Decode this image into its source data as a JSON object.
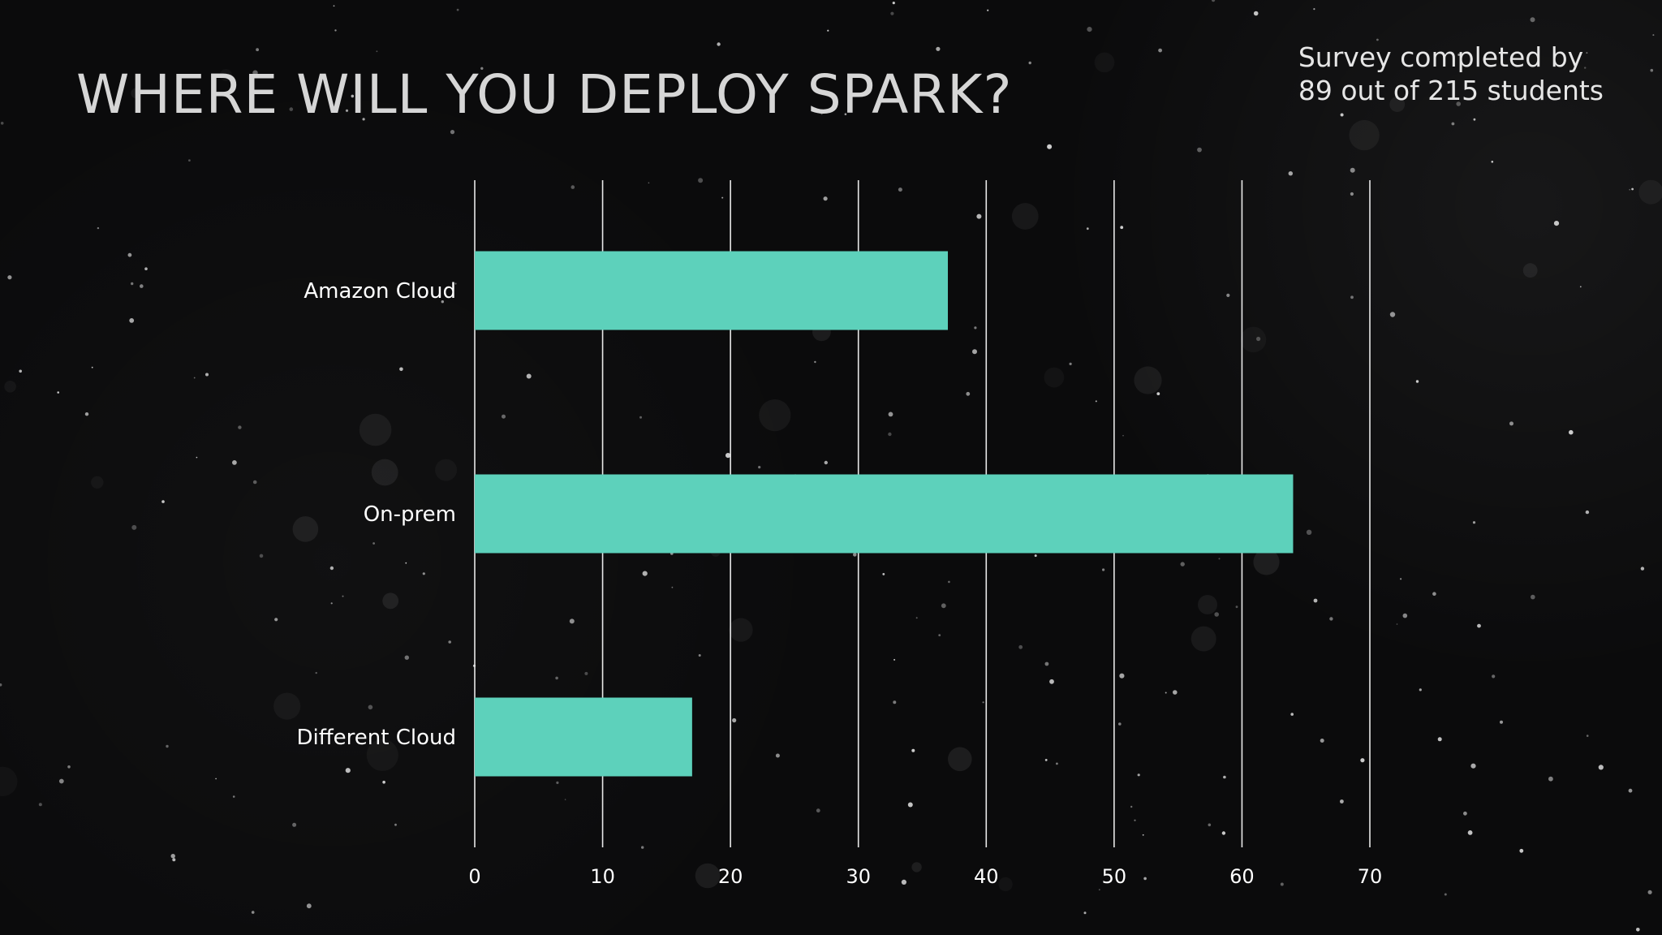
{
  "title": "WHERE WILL YOU DEPLOY SPARK?",
  "survey_note": {
    "line1": "Survey completed by",
    "line2": "89 out of 215 students"
  },
  "colors": {
    "background": "#0b0b0c",
    "bar": "#5dd1bb",
    "gridline": "#e8e8e8",
    "text": "#ffffff"
  },
  "chart_data": {
    "type": "bar",
    "orientation": "horizontal",
    "title": "WHERE WILL YOU DEPLOY SPARK?",
    "categories": [
      "Amazon Cloud",
      "On-prem",
      "Different Cloud"
    ],
    "values": [
      37,
      64,
      17
    ],
    "xlabel": "",
    "ylabel": "",
    "xlim": [
      0,
      70
    ],
    "xticks": [
      0,
      10,
      20,
      30,
      40,
      50,
      60,
      70
    ],
    "grid": true,
    "legend": "none"
  }
}
